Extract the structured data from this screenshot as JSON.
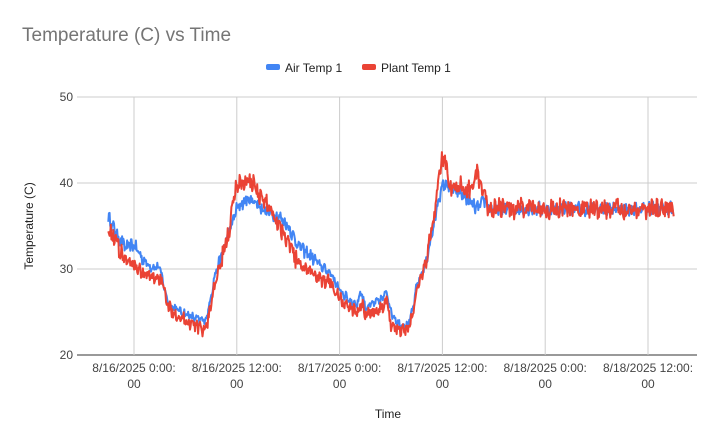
{
  "chart_data": {
    "type": "line",
    "title": "Temperature (C) vs Time",
    "xlabel": "Time",
    "ylabel": "Temperature (C)",
    "ylim": [
      20,
      50
    ],
    "yticks": [
      "20",
      "30",
      "40",
      "50"
    ],
    "xticks": [
      {
        "line1": "8/16/2025 0:00:",
        "line2": "00",
        "hours": 24
      },
      {
        "line1": "8/16/2025 12:00:",
        "line2": "00",
        "hours": 36
      },
      {
        "line1": "8/17/2025 0:00:",
        "line2": "00",
        "hours": 48
      },
      {
        "line1": "8/17/2025 12:00:",
        "line2": "00",
        "hours": 60
      },
      {
        "line1": "8/18/2025 0:00:",
        "line2": "00",
        "hours": 72
      },
      {
        "line1": "8/18/2025 12:00:",
        "line2": "00",
        "hours": 84
      }
    ],
    "xrange_hours": [
      24,
      84
    ],
    "legend_position": "top",
    "grid": true,
    "x_axis_start": "8/15/2025 21:00",
    "series": [
      {
        "name": "Air Temp 1",
        "color": "#4285f4",
        "noise": 0.8,
        "points": [
          [
            -3,
            31.5
          ],
          [
            -1,
            31.5
          ],
          [
            0,
            31.5
          ],
          [
            1,
            30.8
          ],
          [
            1.5,
            29.5
          ],
          [
            2,
            28.5
          ],
          [
            3,
            27.5
          ],
          [
            4,
            26.8
          ],
          [
            5,
            26.6
          ],
          [
            6,
            26.3
          ],
          [
            7,
            25.8
          ],
          [
            8,
            25.4
          ],
          [
            9,
            24.8
          ],
          [
            10,
            24.5
          ],
          [
            11,
            25.8
          ],
          [
            11.5,
            27.5
          ],
          [
            12.5,
            29.5
          ],
          [
            13.5,
            32
          ],
          [
            14.5,
            34
          ],
          [
            15,
            37
          ],
          [
            15.5,
            39
          ],
          [
            16,
            35.5
          ],
          [
            16.5,
            37
          ],
          [
            17,
            35
          ],
          [
            17.5,
            38
          ],
          [
            18,
            40.5
          ],
          [
            18.5,
            39
          ],
          [
            19,
            38.5
          ],
          [
            19.5,
            37
          ],
          [
            20,
            37.5
          ],
          [
            20.5,
            36.5
          ],
          [
            21,
            36
          ],
          [
            22,
            34
          ],
          [
            23,
            32.5
          ],
          [
            24,
            32.8
          ],
          [
            25,
            31.2
          ],
          [
            26,
            30.2
          ],
          [
            27,
            30.2
          ],
          [
            27.5,
            28
          ],
          [
            28,
            26
          ],
          [
            29,
            25.3
          ],
          [
            30,
            24.8
          ],
          [
            31,
            24.3
          ],
          [
            32,
            24
          ],
          [
            32.5,
            24.3
          ],
          [
            33,
            27
          ],
          [
            33.5,
            29.5
          ],
          [
            34,
            31
          ],
          [
            35,
            34
          ],
          [
            36,
            37
          ],
          [
            37,
            38
          ],
          [
            38,
            38
          ],
          [
            39,
            37
          ],
          [
            40,
            36.5
          ],
          [
            41,
            36
          ],
          [
            42,
            35
          ],
          [
            43,
            33
          ],
          [
            44,
            32
          ],
          [
            45,
            31.2
          ],
          [
            46,
            30.2
          ],
          [
            47,
            29.5
          ],
          [
            48,
            27.5
          ],
          [
            49,
            26.5
          ],
          [
            50,
            25.8
          ],
          [
            50.5,
            27.5
          ],
          [
            51,
            25.5
          ],
          [
            52,
            26
          ],
          [
            53,
            26.5
          ],
          [
            53.5,
            27.5
          ],
          [
            54,
            25
          ],
          [
            55,
            23.5
          ],
          [
            56,
            23.5
          ],
          [
            56.5,
            25
          ],
          [
            57,
            28
          ],
          [
            58,
            30.5
          ],
          [
            59,
            35
          ],
          [
            59.5,
            38
          ],
          [
            60,
            39.5
          ],
          [
            60.5,
            40
          ],
          [
            61,
            39
          ],
          [
            62,
            39
          ],
          [
            63,
            38
          ],
          [
            64,
            37
          ],
          [
            65,
            38
          ],
          [
            65.5,
            37
          ]
        ]
      },
      {
        "name": "Plant Temp 1",
        "color": "#ea4335",
        "noise": 1.3,
        "points": [
          [
            -3,
            30
          ],
          [
            -1,
            30
          ],
          [
            0,
            30
          ],
          [
            1,
            29.5
          ],
          [
            1.5,
            28.5
          ],
          [
            2,
            27.5
          ],
          [
            3,
            26.5
          ],
          [
            4,
            26
          ],
          [
            5,
            25.5
          ],
          [
            6,
            25
          ],
          [
            7,
            24.5
          ],
          [
            8,
            24
          ],
          [
            9,
            23.8
          ],
          [
            10,
            23.5
          ],
          [
            11,
            24.5
          ],
          [
            11.5,
            27
          ],
          [
            12.5,
            29
          ],
          [
            13.5,
            31.5
          ],
          [
            14.5,
            33
          ],
          [
            15,
            38.5
          ],
          [
            15.5,
            40.5
          ],
          [
            16,
            34
          ],
          [
            16.5,
            36
          ],
          [
            17,
            34
          ],
          [
            17.5,
            38
          ],
          [
            18,
            42.5
          ],
          [
            18.5,
            41.5
          ],
          [
            19,
            40
          ],
          [
            19.5,
            38
          ],
          [
            20,
            38
          ],
          [
            20.5,
            36.5
          ],
          [
            21,
            35
          ],
          [
            22,
            33
          ],
          [
            23,
            31
          ],
          [
            24,
            30.5
          ],
          [
            25,
            29.5
          ],
          [
            26,
            29
          ],
          [
            27,
            29
          ],
          [
            27.5,
            27.5
          ],
          [
            28,
            25.5
          ],
          [
            29,
            24.8
          ],
          [
            30,
            24
          ],
          [
            31,
            23.5
          ],
          [
            32,
            23
          ],
          [
            32.5,
            23.5
          ],
          [
            33,
            26
          ],
          [
            33.5,
            28.5
          ],
          [
            34,
            30
          ],
          [
            35,
            34
          ],
          [
            36,
            40
          ],
          [
            37,
            40
          ],
          [
            38,
            40
          ],
          [
            39,
            38
          ],
          [
            40,
            37
          ],
          [
            41,
            35
          ],
          [
            42,
            33.5
          ],
          [
            43,
            31
          ],
          [
            44,
            30
          ],
          [
            45,
            29.5
          ],
          [
            46,
            28.5
          ],
          [
            47,
            28.5
          ],
          [
            48,
            26.5
          ],
          [
            49,
            25.5
          ],
          [
            50,
            25
          ],
          [
            50.5,
            26
          ],
          [
            51,
            25
          ],
          [
            52,
            25
          ],
          [
            53,
            25.5
          ],
          [
            53.5,
            26.5
          ],
          [
            54,
            23.5
          ],
          [
            55,
            22.8
          ],
          [
            56,
            23
          ],
          [
            56.5,
            24.5
          ],
          [
            57,
            27.5
          ],
          [
            58,
            30.5
          ],
          [
            59,
            36
          ],
          [
            59.5,
            40
          ],
          [
            60,
            43
          ],
          [
            60.5,
            42
          ],
          [
            61,
            39
          ],
          [
            62,
            40
          ],
          [
            63,
            39
          ],
          [
            64,
            41
          ],
          [
            65,
            38
          ],
          [
            65.5,
            37
          ]
        ]
      }
    ]
  }
}
